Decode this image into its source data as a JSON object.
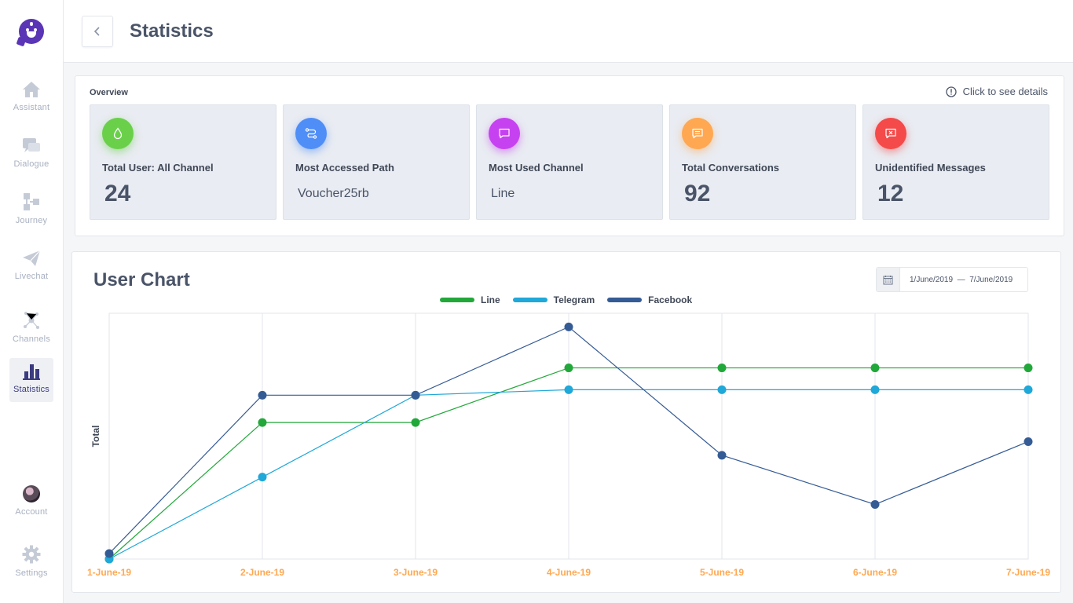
{
  "sidebar": {
    "items": [
      {
        "label": "Assistant",
        "icon": "home-icon"
      },
      {
        "label": "Dialogue",
        "icon": "chat-bubbles-icon"
      },
      {
        "label": "Journey",
        "icon": "flow-icon"
      },
      {
        "label": "Livechat",
        "icon": "paper-plane-icon"
      },
      {
        "label": "Channels",
        "icon": "network-icon"
      },
      {
        "label": "Statistics",
        "icon": "bar-chart-icon",
        "active": true
      },
      {
        "label": "Account",
        "icon": "avatar"
      },
      {
        "label": "Settings",
        "icon": "gear-icon"
      }
    ]
  },
  "header": {
    "title": "Statistics"
  },
  "overview": {
    "title": "Overview",
    "details_link": "Click to see details",
    "cards": [
      {
        "label": "Total User: All Channel",
        "value": "24",
        "icon": "drop-icon",
        "color": "#6ad04a"
      },
      {
        "label": "Most Accessed Path",
        "value": "Voucher25rb",
        "icon": "route-icon",
        "color": "#4f8ef7"
      },
      {
        "label": "Most Used Channel",
        "value": "Line",
        "icon": "message-icon",
        "color": "#c642f0"
      },
      {
        "label": "Total Conversations",
        "value": "92",
        "icon": "note-icon",
        "color": "#ffa851"
      },
      {
        "label": "Unidentified Messages",
        "value": "12",
        "icon": "x-message-icon",
        "color": "#f44a4a"
      }
    ]
  },
  "chart_panel": {
    "title": "User Chart",
    "date_from": "1/June/2019",
    "date_sep": "—",
    "date_to": "7/June/2019"
  },
  "chart_data": {
    "type": "line",
    "title": "User Chart",
    "xlabel": "",
    "ylabel": "Total",
    "categories": [
      "1-June-19",
      "2-June-19",
      "3-June-19",
      "4-June-19",
      "5-June-19",
      "6-June-19",
      "7-June-19"
    ],
    "series": [
      {
        "name": "Line",
        "color": "#22a83a",
        "values": [
          0,
          5,
          5,
          7,
          7,
          7,
          7
        ]
      },
      {
        "name": "Telegram",
        "color": "#1fa8d8",
        "values": [
          0,
          3,
          6,
          6.2,
          6.2,
          6.2,
          6.2
        ]
      },
      {
        "name": "Facebook",
        "color": "#355b95",
        "values": [
          0.2,
          6,
          6,
          8.5,
          3.8,
          2,
          4.3
        ]
      }
    ],
    "ylim": [
      0,
      9
    ],
    "grid": true,
    "legend": "top-center"
  }
}
